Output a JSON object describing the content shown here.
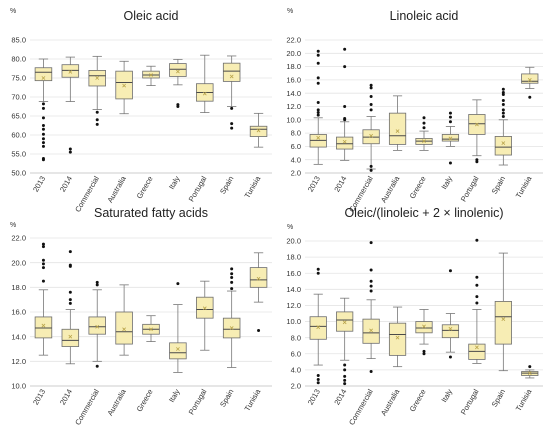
{
  "chart_data": [
    {
      "type": "boxplot",
      "title": "Oleic acid",
      "unit_label": "%",
      "ylim": [
        50.0,
        85.0
      ],
      "yticks": [
        50.0,
        55.0,
        60.0,
        65.0,
        70.0,
        75.0,
        80.0,
        85.0
      ],
      "ytick_labels": [
        "50.0",
        "55.0",
        "60.0",
        "65.0",
        "70.0",
        "75.0",
        "80.0",
        "85.0"
      ],
      "grid": true,
      "categories": [
        "2013",
        "2014",
        "Commercial",
        "Australia",
        "Greece",
        "Italy",
        "Portugal",
        "Spain",
        "Tunisia"
      ],
      "series": [
        {
          "whisker_low": 68.8,
          "q1": 74.3,
          "median": 76.5,
          "q3": 77.7,
          "whisker_high": 80.0,
          "mean": 75.0,
          "outliers": [
            53.5,
            53.8,
            57.0,
            58.0,
            59.0,
            60.2,
            61.5,
            62.5,
            64.5,
            67.0,
            68.2
          ]
        },
        {
          "whisker_low": 68.8,
          "q1": 75.2,
          "median": 77.0,
          "q3": 78.5,
          "whisker_high": 80.5,
          "mean": 76.6,
          "outliers": [
            55.5,
            56.3
          ]
        },
        {
          "whisker_low": 66.7,
          "q1": 72.9,
          "median": 75.6,
          "q3": 77.0,
          "whisker_high": 80.7,
          "mean": 75.0,
          "outliers": [
            62.8,
            64.0,
            66.0
          ]
        },
        {
          "whisker_low": 65.6,
          "q1": 69.5,
          "median": 73.8,
          "q3": 76.8,
          "whisker_high": 79.4,
          "mean": 73.0,
          "outliers": []
        },
        {
          "whisker_low": 73.0,
          "q1": 75.0,
          "median": 75.8,
          "q3": 76.8,
          "whisker_high": 78.1,
          "mean": 75.8,
          "outliers": []
        },
        {
          "whisker_low": 73.2,
          "q1": 75.4,
          "median": 77.3,
          "q3": 78.8,
          "whisker_high": 79.9,
          "mean": 76.7,
          "outliers": [
            67.5,
            68.0
          ]
        },
        {
          "whisker_low": 65.9,
          "q1": 68.9,
          "median": 71.2,
          "q3": 73.5,
          "whisker_high": 81.0,
          "mean": 70.9,
          "outliers": []
        },
        {
          "whisker_low": 67.5,
          "q1": 74.1,
          "median": 76.8,
          "q3": 78.9,
          "whisker_high": 80.8,
          "mean": 75.4,
          "outliers": [
            61.8,
            63.0,
            67.0
          ]
        },
        {
          "whisker_low": 56.8,
          "q1": 59.6,
          "median": 61.5,
          "q3": 62.3,
          "whisker_high": 65.7,
          "mean": 61.2,
          "outliers": []
        }
      ]
    },
    {
      "type": "boxplot",
      "title": "Linoleic acid",
      "unit_label": "%",
      "ylim": [
        2.0,
        22.0
      ],
      "yticks": [
        2.0,
        4.0,
        6.0,
        8.0,
        10.0,
        12.0,
        14.0,
        16.0,
        18.0,
        20.0,
        22.0
      ],
      "ytick_labels": [
        "2.0",
        "4.0",
        "6.0",
        "8.0",
        "10.0",
        "12.0",
        "14.0",
        "16.0",
        "18.0",
        "20.0",
        "22.0"
      ],
      "grid": true,
      "categories": [
        "2013",
        "2014",
        "Commercial",
        "Australia",
        "Greece",
        "Italy",
        "Portugal",
        "Spain",
        "Tunisia"
      ],
      "series": [
        {
          "whisker_low": 3.3,
          "q1": 5.9,
          "median": 6.9,
          "q3": 7.8,
          "whisker_high": 10.3,
          "mean": 7.3,
          "outliers": [
            10.7,
            11.1,
            11.5,
            12.6,
            15.5,
            16.3,
            18.5,
            19.7,
            20.3
          ]
        },
        {
          "whisker_low": 3.9,
          "q1": 5.6,
          "median": 6.4,
          "q3": 7.4,
          "whisker_high": 9.7,
          "mean": 6.7,
          "outliers": [
            10.0,
            10.2,
            12.0,
            18.0,
            20.6
          ]
        },
        {
          "whisker_low": 2.6,
          "q1": 6.4,
          "median": 7.4,
          "q3": 8.5,
          "whisker_high": 10.5,
          "mean": 7.6,
          "outliers": [
            2.4,
            3.0,
            11.5,
            12.3,
            13.5,
            14.8,
            15.2
          ]
        },
        {
          "whisker_low": 5.4,
          "q1": 6.3,
          "median": 7.6,
          "q3": 11.0,
          "whisker_high": 13.6,
          "mean": 8.3,
          "outliers": []
        },
        {
          "whisker_low": 5.4,
          "q1": 6.3,
          "median": 6.8,
          "q3": 7.2,
          "whisker_high": 8.3,
          "mean": 6.8,
          "outliers": [
            8.8,
            9.5,
            10.3
          ]
        },
        {
          "whisker_low": 6.0,
          "q1": 6.8,
          "median": 7.1,
          "q3": 7.8,
          "whisker_high": 9.0,
          "mean": 7.2,
          "outliers": [
            3.5,
            9.7,
            10.4,
            11.0
          ]
        },
        {
          "whisker_low": 4.6,
          "q1": 7.8,
          "median": 9.4,
          "q3": 10.8,
          "whisker_high": 13.0,
          "mean": 9.3,
          "outliers": [
            3.7,
            4.0
          ]
        },
        {
          "whisker_low": 3.2,
          "q1": 4.7,
          "median": 5.9,
          "q3": 7.5,
          "whisker_high": 10.0,
          "mean": 6.5,
          "outliers": [
            10.5,
            11.0,
            11.5,
            12.3,
            12.9,
            13.8,
            14.1,
            14.6
          ]
        },
        {
          "whisker_low": 14.7,
          "q1": 15.5,
          "median": 15.8,
          "q3": 16.9,
          "whisker_high": 17.9,
          "mean": 16.0,
          "outliers": [
            13.4
          ]
        }
      ]
    },
    {
      "type": "boxplot",
      "title": "Saturated fatty acids",
      "unit_label": "%",
      "ylim": [
        10.0,
        22.0
      ],
      "yticks": [
        10.0,
        12.0,
        14.0,
        16.0,
        18.0,
        20.0,
        22.0
      ],
      "ytick_labels": [
        "10.0",
        "12.0",
        "14.0",
        "16.0",
        "18.0",
        "20.0",
        "22.0"
      ],
      "grid": true,
      "categories": [
        "2013",
        "2014",
        "Commercial",
        "Australia",
        "Greece",
        "Italy",
        "Portugal",
        "Spain",
        "Tunisia"
      ],
      "series": [
        {
          "whisker_low": 12.5,
          "q1": 13.9,
          "median": 14.7,
          "q3": 15.6,
          "whisker_high": 17.8,
          "mean": 14.9,
          "outliers": [
            18.5,
            19.6,
            19.9,
            20.2,
            21.3,
            21.5
          ]
        },
        {
          "whisker_low": 11.8,
          "q1": 13.2,
          "median": 13.7,
          "q3": 14.6,
          "whisker_high": 16.2,
          "mean": 14.0,
          "outliers": [
            16.7,
            17.0,
            17.6,
            19.7,
            19.8,
            20.9
          ]
        },
        {
          "whisker_low": 12.0,
          "q1": 14.2,
          "median": 14.8,
          "q3": 15.6,
          "whisker_high": 17.8,
          "mean": 14.8,
          "outliers": [
            11.6,
            18.2,
            18.4
          ]
        },
        {
          "whisker_low": 12.5,
          "q1": 13.4,
          "median": 14.4,
          "q3": 16.0,
          "whisker_high": 18.2,
          "mean": 14.6,
          "outliers": []
        },
        {
          "whisker_low": 13.6,
          "q1": 14.2,
          "median": 14.6,
          "q3": 15.0,
          "whisker_high": 15.7,
          "mean": 14.6,
          "outliers": []
        },
        {
          "whisker_low": 11.1,
          "q1": 12.2,
          "median": 12.7,
          "q3": 13.5,
          "whisker_high": 16.6,
          "mean": 13.0,
          "outliers": [
            18.3
          ]
        },
        {
          "whisker_low": 12.9,
          "q1": 15.5,
          "median": 16.2,
          "q3": 17.2,
          "whisker_high": 18.5,
          "mean": 16.3,
          "outliers": []
        },
        {
          "whisker_low": 11.5,
          "q1": 13.9,
          "median": 14.6,
          "q3": 15.5,
          "whisker_high": 17.7,
          "mean": 14.7,
          "outliers": [
            17.9,
            18.4,
            18.8,
            19.1,
            19.5
          ]
        },
        {
          "whisker_low": 16.8,
          "q1": 18.0,
          "median": 18.6,
          "q3": 19.6,
          "whisker_high": 20.8,
          "mean": 18.7,
          "outliers": [
            14.5
          ]
        }
      ]
    },
    {
      "type": "boxplot",
      "title": "Oleic/(linoleic + 2 × linolenic)",
      "unit_label": "%",
      "ylim": [
        2.0,
        20.0
      ],
      "yticks": [
        2.0,
        4.0,
        6.0,
        8.0,
        10.0,
        12.0,
        14.0,
        16.0,
        18.0,
        20.0
      ],
      "ytick_labels": [
        "2.0",
        "4.0",
        "6.0",
        "8.0",
        "10.0",
        "12.0",
        "14.0",
        "16.0",
        "18.0",
        "20.0"
      ],
      "grid": true,
      "categories": [
        "2013",
        "2014",
        "Commercial",
        "Australia",
        "Greece",
        "Italy",
        "Portugal",
        "Spain",
        "Tunisia"
      ],
      "series": [
        {
          "whisker_low": 4.6,
          "q1": 7.8,
          "median": 9.4,
          "q3": 10.6,
          "whisker_high": 13.4,
          "mean": 9.3,
          "outliers": [
            2.4,
            2.8,
            3.3,
            16.0,
            16.5
          ]
        },
        {
          "whisker_low": 5.2,
          "q1": 8.8,
          "median": 10.2,
          "q3": 11.2,
          "whisker_high": 12.9,
          "mean": 9.9,
          "outliers": [
            2.3,
            2.7,
            3.2,
            4.0,
            4.6
          ]
        },
        {
          "whisker_low": 5.4,
          "q1": 7.3,
          "median": 8.6,
          "q3": 10.3,
          "whisker_high": 12.7,
          "mean": 8.9,
          "outliers": [
            3.8,
            13.8,
            14.4,
            15.0,
            16.4,
            19.8
          ]
        },
        {
          "whisker_low": 4.4,
          "q1": 5.8,
          "median": 8.4,
          "q3": 9.8,
          "whisker_high": 11.8,
          "mean": 8.0,
          "outliers": []
        },
        {
          "whisker_low": 7.2,
          "q1": 8.6,
          "median": 9.2,
          "q3": 10.0,
          "whisker_high": 11.5,
          "mean": 9.4,
          "outliers": [
            6.0,
            6.3
          ]
        },
        {
          "whisker_low": 6.2,
          "q1": 8.0,
          "median": 8.9,
          "q3": 9.6,
          "whisker_high": 11.0,
          "mean": 9.1,
          "outliers": [
            5.6,
            16.3
          ]
        },
        {
          "whisker_low": 4.8,
          "q1": 5.3,
          "median": 6.3,
          "q3": 7.2,
          "whisker_high": 11.5,
          "mean": 6.8,
          "outliers": [
            12.3,
            13.1,
            14.5,
            15.5,
            20.1
          ]
        },
        {
          "whisker_low": 3.9,
          "q1": 7.2,
          "median": 10.6,
          "q3": 12.5,
          "whisker_high": 18.5,
          "mean": 10.3,
          "outliers": []
        },
        {
          "whisker_low": 3.0,
          "q1": 3.3,
          "median": 3.6,
          "q3": 3.8,
          "whisker_high": 4.0,
          "mean": 3.6,
          "outliers": [
            4.4
          ]
        }
      ]
    }
  ]
}
